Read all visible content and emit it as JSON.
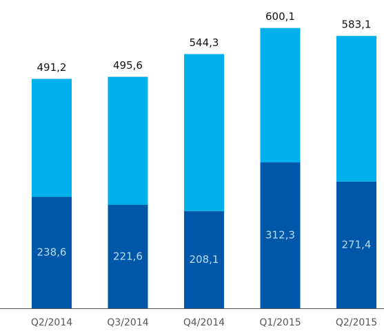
{
  "chart_data": {
    "type": "stacked_bar",
    "categories": [
      "Q2/2014",
      "Q3/2014",
      "Q4/2014",
      "Q1/2015",
      "Q2/2015"
    ],
    "series": [
      {
        "color": "#0057a8",
        "values": [
          238.6,
          221.6,
          208.1,
          312.3,
          271.4
        ],
        "value_labels": [
          "238,6",
          "221,6",
          "208,1",
          "312,3",
          "271,4"
        ]
      },
      {
        "color": "#00b0ea",
        "values": [
          252.6,
          274.0,
          336.2,
          287.8,
          311.7
        ]
      }
    ],
    "totals": [
      491.2,
      495.6,
      544.3,
      600.1,
      583.1
    ],
    "total_labels": [
      "491,2",
      "495,6",
      "544,3",
      "600,1",
      "583,1"
    ],
    "ylim": [
      0,
      660
    ]
  }
}
